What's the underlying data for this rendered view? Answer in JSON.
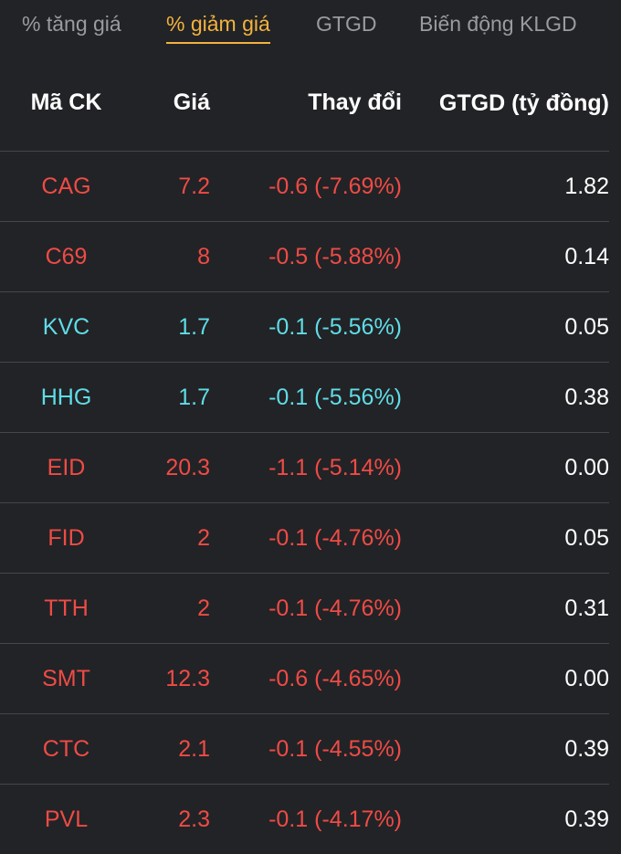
{
  "tabs": [
    {
      "label": "% tăng giá",
      "active": false
    },
    {
      "label": "% giảm giá",
      "active": true
    },
    {
      "label": "GTGD",
      "active": false
    },
    {
      "label": "Biến động KLGD",
      "active": false
    }
  ],
  "columns": {
    "code": "Mã CK",
    "price": "Giá",
    "change": "Thay đổi",
    "value": "GTGD (tỷ đồng)"
  },
  "colors": {
    "down": "#ef4b46",
    "floor": "#5fdde8",
    "active_tab": "#f3b23e"
  },
  "rows": [
    {
      "code": "CAG",
      "price": "7.2",
      "change": "-0.6 (-7.69%)",
      "value": "1.82",
      "status": "down"
    },
    {
      "code": "C69",
      "price": "8",
      "change": "-0.5 (-5.88%)",
      "value": "0.14",
      "status": "down"
    },
    {
      "code": "KVC",
      "price": "1.7",
      "change": "-0.1 (-5.56%)",
      "value": "0.05",
      "status": "floor"
    },
    {
      "code": "HHG",
      "price": "1.7",
      "change": "-0.1 (-5.56%)",
      "value": "0.38",
      "status": "floor"
    },
    {
      "code": "EID",
      "price": "20.3",
      "change": "-1.1 (-5.14%)",
      "value": "0.00",
      "status": "down"
    },
    {
      "code": "FID",
      "price": "2",
      "change": "-0.1 (-4.76%)",
      "value": "0.05",
      "status": "down"
    },
    {
      "code": "TTH",
      "price": "2",
      "change": "-0.1 (-4.76%)",
      "value": "0.31",
      "status": "down"
    },
    {
      "code": "SMT",
      "price": "12.3",
      "change": "-0.6 (-4.65%)",
      "value": "0.00",
      "status": "down"
    },
    {
      "code": "CTC",
      "price": "2.1",
      "change": "-0.1 (-4.55%)",
      "value": "0.39",
      "status": "down"
    },
    {
      "code": "PVL",
      "price": "2.3",
      "change": "-0.1 (-4.17%)",
      "value": "0.39",
      "status": "down"
    }
  ]
}
